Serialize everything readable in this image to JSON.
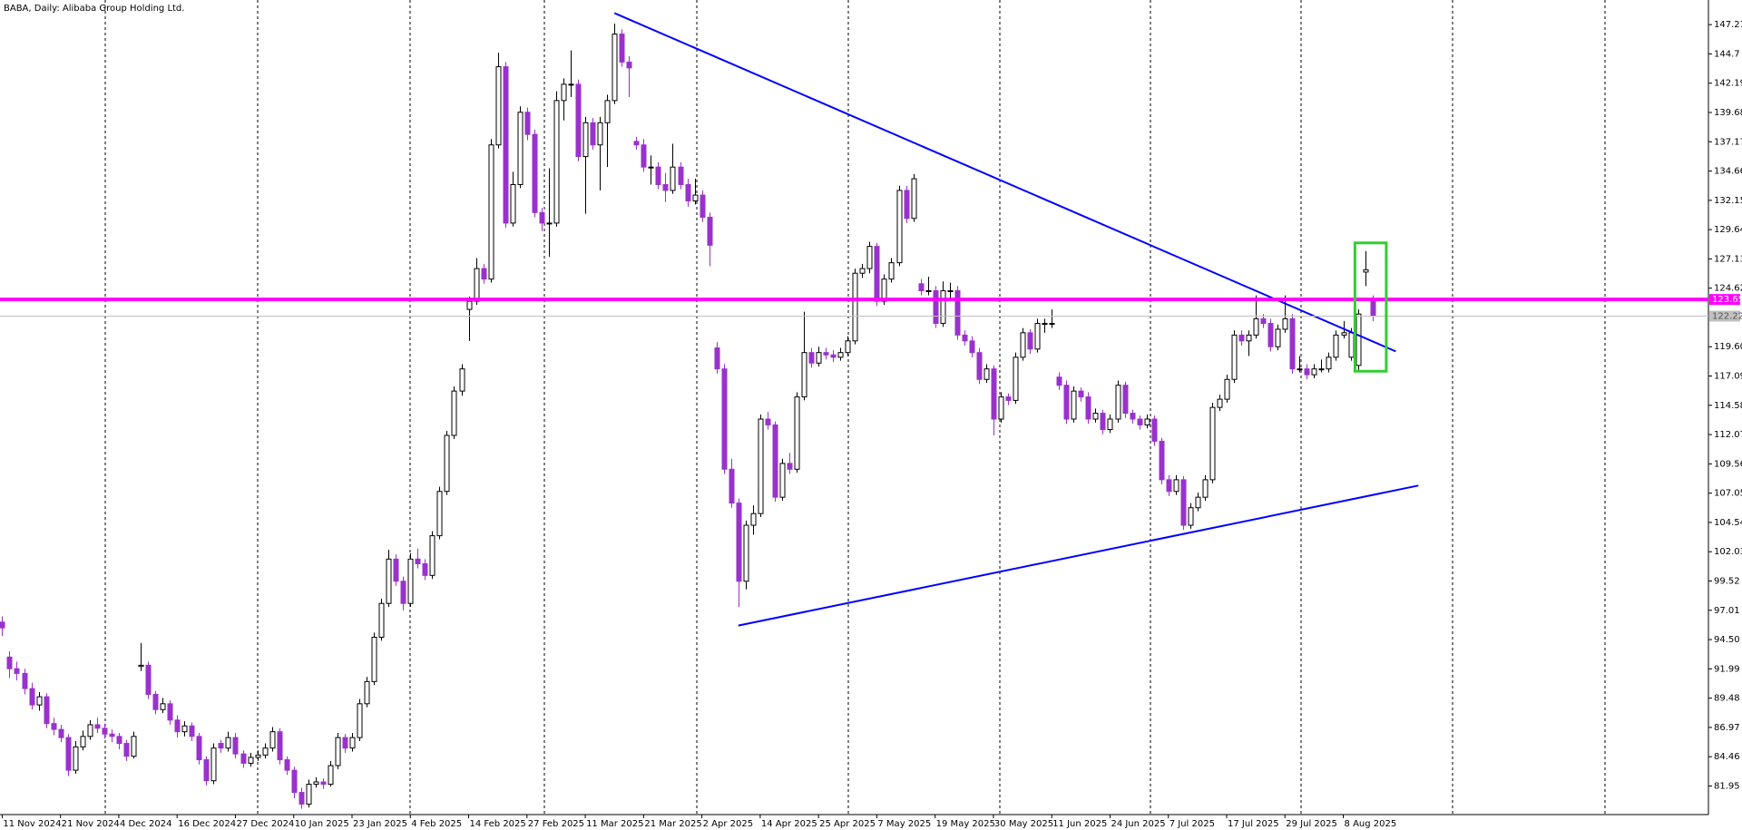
{
  "chart_data": {
    "type": "candlestick",
    "title": "BABA, Daily:  Alibaba Group Holding Ltd.",
    "up_color": "#ffffff",
    "down_color": "#9932cc",
    "outline_color": "#000000",
    "xlim": [
      -0.3,
      234.1
    ],
    "ylim": [
      79.5,
      149.32
    ],
    "xticks": [
      {
        "value": 0,
        "label": "11 Nov 2024"
      },
      {
        "value": 8,
        "label": "21 Nov 2024"
      },
      {
        "value": 16,
        "label": "4 Dec 2024"
      },
      {
        "value": 24,
        "label": "16 Dec 2024"
      },
      {
        "value": 32,
        "label": "27 Dec 2024"
      },
      {
        "value": 40,
        "label": "10 Jan 2025"
      },
      {
        "value": 48,
        "label": "23 Jan 2025"
      },
      {
        "value": 56,
        "label": "4 Feb 2025"
      },
      {
        "value": 64,
        "label": "14 Feb 2025"
      },
      {
        "value": 72,
        "label": "27 Feb 2025"
      },
      {
        "value": 80,
        "label": "11 Mar 2025"
      },
      {
        "value": 88,
        "label": "21 Mar 2025"
      },
      {
        "value": 96,
        "label": "2 Apr 2025"
      },
      {
        "value": 104,
        "label": "14 Apr 2025"
      },
      {
        "value": 112,
        "label": "25 Apr 2025"
      },
      {
        "value": 120,
        "label": "7 May 2025"
      },
      {
        "value": 128,
        "label": "19 May 2025"
      },
      {
        "value": 136,
        "label": "30 May 2025"
      },
      {
        "value": 144,
        "label": "11 Jun 2025"
      },
      {
        "value": 152,
        "label": "24 Jun 2025"
      },
      {
        "value": 160,
        "label": "7 Jul 2025"
      },
      {
        "value": 168,
        "label": "17 Jul 2025"
      },
      {
        "value": 176,
        "label": "29 Jul 2025"
      },
      {
        "value": 184,
        "label": "8 Aug 2025"
      }
    ],
    "yticks": [
      81.95,
      84.46,
      86.97,
      89.48,
      91.99,
      {
        "value": 94.5,
        "label": "94.50"
      },
      97.01,
      99.52,
      102.03,
      104.54,
      107.05,
      109.56,
      112.07,
      114.58,
      117.09,
      {
        "value": 119.6,
        "label": "119.60"
      },
      124.62,
      127.13,
      129.64,
      132.15,
      134.66,
      137.17,
      139.68,
      142.19,
      144.7,
      147.21
    ],
    "candles": [
      [
        96.0,
        96.5,
        94.8,
        95.5
      ],
      [
        93.0,
        93.5,
        91.2,
        92.0
      ],
      [
        92.0,
        92.6,
        91.0,
        91.6
      ],
      [
        91.6,
        92.0,
        89.8,
        90.3
      ],
      [
        90.3,
        90.8,
        88.5,
        88.9
      ],
      [
        88.9,
        90.0,
        88.4,
        89.6
      ],
      [
        89.6,
        89.9,
        86.9,
        87.3
      ],
      [
        87.3,
        87.8,
        86.3,
        86.8
      ],
      [
        86.8,
        87.2,
        85.7,
        86.1
      ],
      [
        86.1,
        86.4,
        82.8,
        83.3
      ],
      [
        83.3,
        85.8,
        83.0,
        85.3
      ],
      [
        85.3,
        86.7,
        85.0,
        86.2
      ],
      [
        86.2,
        87.6,
        85.9,
        87.2
      ],
      [
        87.2,
        87.8,
        86.5,
        86.9
      ],
      [
        86.9,
        87.3,
        86.0,
        86.4
      ],
      [
        86.4,
        86.8,
        85.7,
        86.2
      ],
      [
        86.2,
        86.5,
        85.1,
        85.6
      ],
      [
        85.6,
        85.9,
        84.1,
        84.5
      ],
      [
        84.5,
        86.6,
        84.3,
        86.2
      ],
      [
        92.2,
        94.2,
        91.8,
        92.3
      ],
      [
        92.3,
        92.6,
        89.4,
        89.8
      ],
      [
        89.8,
        90.1,
        88.1,
        88.5
      ],
      [
        88.5,
        89.5,
        88.2,
        89.0
      ],
      [
        89.0,
        89.3,
        87.2,
        87.6
      ],
      [
        87.6,
        88.0,
        86.1,
        86.6
      ],
      [
        86.6,
        87.5,
        86.2,
        87.1
      ],
      [
        87.1,
        87.4,
        85.8,
        86.2
      ],
      [
        86.2,
        86.5,
        83.8,
        84.2
      ],
      [
        84.2,
        84.5,
        82.0,
        82.4
      ],
      [
        82.4,
        85.6,
        82.1,
        85.2
      ],
      [
        85.6,
        85.9,
        84.8,
        85.2
      ],
      [
        85.2,
        86.6,
        84.9,
        86.1
      ],
      [
        86.1,
        86.5,
        84.3,
        84.7
      ],
      [
        84.7,
        85.0,
        83.5,
        83.9
      ],
      [
        83.9,
        84.8,
        83.6,
        84.4
      ],
      [
        84.4,
        85.0,
        84.1,
        84.6
      ],
      [
        84.6,
        85.6,
        84.3,
        85.2
      ],
      [
        85.2,
        87.0,
        84.9,
        86.6
      ],
      [
        86.6,
        86.9,
        83.8,
        84.2
      ],
      [
        84.2,
        84.5,
        82.9,
        83.3
      ],
      [
        83.3,
        83.6,
        80.9,
        81.4
      ],
      [
        81.4,
        81.8,
        80.0,
        80.4
      ],
      [
        80.4,
        82.5,
        80.1,
        82.1
      ],
      [
        82.1,
        82.7,
        81.8,
        82.3
      ],
      [
        82.3,
        82.6,
        81.7,
        82.1
      ],
      [
        82.1,
        84.1,
        81.9,
        83.7
      ],
      [
        83.7,
        86.5,
        83.4,
        86.1
      ],
      [
        86.1,
        86.4,
        84.8,
        85.2
      ],
      [
        85.2,
        86.5,
        84.9,
        86.1
      ],
      [
        86.1,
        89.4,
        85.8,
        89.0
      ],
      [
        89.0,
        91.3,
        88.7,
        90.9
      ],
      [
        90.9,
        95.1,
        90.6,
        94.7
      ],
      [
        94.7,
        98.0,
        94.4,
        97.6
      ],
      [
        97.6,
        102.2,
        97.3,
        101.4
      ],
      [
        101.4,
        101.8,
        99.1,
        99.5
      ],
      [
        99.5,
        99.9,
        97.0,
        97.6
      ],
      [
        97.6,
        101.9,
        97.3,
        101.4
      ],
      [
        101.4,
        102.3,
        100.6,
        101.0
      ],
      [
        101.0,
        101.4,
        99.6,
        100.0
      ],
      [
        100.0,
        103.8,
        99.7,
        103.4
      ],
      [
        103.4,
        107.6,
        103.1,
        107.2
      ],
      [
        107.2,
        112.4,
        106.9,
        112.0
      ],
      [
        112.0,
        116.2,
        111.7,
        115.8
      ],
      [
        115.8,
        118.1,
        115.4,
        117.7
      ],
      [
        122.8,
        123.9,
        120.1,
        123.5
      ],
      [
        123.5,
        127.2,
        123.2,
        126.3
      ],
      [
        126.3,
        126.7,
        125.0,
        125.4
      ],
      [
        125.4,
        137.4,
        125.1,
        136.9
      ],
      [
        136.9,
        144.8,
        136.6,
        143.6
      ],
      [
        143.6,
        144.0,
        129.8,
        130.2
      ],
      [
        130.2,
        134.6,
        129.9,
        133.5
      ],
      [
        133.5,
        140.2,
        133.2,
        139.7
      ],
      [
        139.7,
        140.1,
        137.3,
        137.8
      ],
      [
        137.8,
        138.2,
        130.7,
        131.1
      ],
      [
        131.1,
        131.5,
        129.5,
        130.2
      ],
      [
        130.2,
        134.9,
        127.3,
        130.2
      ],
      [
        130.2,
        141.5,
        129.9,
        140.7
      ],
      [
        140.7,
        142.6,
        139.0,
        142.1
      ],
      [
        142.1,
        145.0,
        141.0,
        142.1
      ],
      [
        142.1,
        142.5,
        135.5,
        135.9
      ],
      [
        135.9,
        139.3,
        131.0,
        138.8
      ],
      [
        138.8,
        139.2,
        136.5,
        136.9
      ],
      [
        136.9,
        139.3,
        133.0,
        138.8
      ],
      [
        138.8,
        141.2,
        135.0,
        140.7
      ],
      [
        140.7,
        147.3,
        140.4,
        146.4
      ],
      [
        146.4,
        146.8,
        143.6,
        144.0
      ],
      [
        144.0,
        144.5,
        141.0,
        143.5
      ],
      [
        137.2,
        137.6,
        136.5,
        136.9
      ],
      [
        136.9,
        137.4,
        134.6,
        135.0
      ],
      [
        135.0,
        136.0,
        133.5,
        135.0
      ],
      [
        135.0,
        135.4,
        133.1,
        133.5
      ],
      [
        133.5,
        134.5,
        132.0,
        133.0
      ],
      [
        133.0,
        137.0,
        132.7,
        135.0
      ],
      [
        135.0,
        135.4,
        133.1,
        133.5
      ],
      [
        133.5,
        134.0,
        131.6,
        132.1
      ],
      [
        132.1,
        134.0,
        131.8,
        132.6
      ],
      [
        132.6,
        133.0,
        130.3,
        130.7
      ],
      [
        130.7,
        131.1,
        126.5,
        128.3
      ],
      [
        119.5,
        120.0,
        117.3,
        117.7
      ],
      [
        117.7,
        118.1,
        108.7,
        109.1
      ],
      [
        109.1,
        110.0,
        105.8,
        106.2
      ],
      [
        106.2,
        106.6,
        97.3,
        99.5
      ],
      [
        99.5,
        104.7,
        98.8,
        104.3
      ],
      [
        104.3,
        106.0,
        103.5,
        105.3
      ],
      [
        105.3,
        113.8,
        105.0,
        113.4
      ],
      [
        113.4,
        114.0,
        112.5,
        112.9
      ],
      [
        112.9,
        113.2,
        106.3,
        106.7
      ],
      [
        106.7,
        110.0,
        106.4,
        109.6
      ],
      [
        109.6,
        110.5,
        108.7,
        109.1
      ],
      [
        109.1,
        115.7,
        108.8,
        115.3
      ],
      [
        115.3,
        122.6,
        115.0,
        119.1
      ],
      [
        119.1,
        119.5,
        117.8,
        118.2
      ],
      [
        118.2,
        119.6,
        117.9,
        119.1
      ],
      [
        119.1,
        119.5,
        118.5,
        118.9
      ],
      [
        118.9,
        119.3,
        118.3,
        118.7
      ],
      [
        118.7,
        119.5,
        118.4,
        119.1
      ],
      [
        119.1,
        120.5,
        118.8,
        120.1
      ],
      [
        120.1,
        126.3,
        119.8,
        125.9
      ],
      [
        125.9,
        126.7,
        125.5,
        126.3
      ],
      [
        126.3,
        128.6,
        125.9,
        128.2
      ],
      [
        128.2,
        128.5,
        123.1,
        123.5
      ],
      [
        123.5,
        125.8,
        123.2,
        125.4
      ],
      [
        125.4,
        127.2,
        125.1,
        126.8
      ],
      [
        126.8,
        133.4,
        126.5,
        133.0
      ],
      [
        133.0,
        133.4,
        130.2,
        130.6
      ],
      [
        130.6,
        134.4,
        130.3,
        134.0
      ],
      [
        125.0,
        125.4,
        124.0,
        124.4
      ],
      [
        124.4,
        125.6,
        124.0,
        124.4
      ],
      [
        124.4,
        124.8,
        121.2,
        121.6
      ],
      [
        121.6,
        125.2,
        121.3,
        124.4
      ],
      [
        124.4,
        125.1,
        123.6,
        124.4
      ],
      [
        124.4,
        124.8,
        120.2,
        120.6
      ],
      [
        120.6,
        121.0,
        119.7,
        120.1
      ],
      [
        120.1,
        120.5,
        118.7,
        119.1
      ],
      [
        119.1,
        119.5,
        116.4,
        116.8
      ],
      [
        116.8,
        118.1,
        116.5,
        117.7
      ],
      [
        117.7,
        118.0,
        112.0,
        113.4
      ],
      [
        113.4,
        115.7,
        113.1,
        115.3
      ],
      [
        115.3,
        115.6,
        114.6,
        115.0
      ],
      [
        115.0,
        119.1,
        114.7,
        118.7
      ],
      [
        118.7,
        121.2,
        118.4,
        120.8
      ],
      [
        120.8,
        121.1,
        119.0,
        119.4
      ],
      [
        119.4,
        122.0,
        119.1,
        121.6
      ],
      [
        121.6,
        122.0,
        120.8,
        121.6
      ],
      [
        121.6,
        122.8,
        121.2,
        121.6
      ],
      [
        117.0,
        117.4,
        115.9,
        116.3
      ],
      [
        116.3,
        116.7,
        113.0,
        113.4
      ],
      [
        113.4,
        116.2,
        113.1,
        115.8
      ],
      [
        115.8,
        116.1,
        114.9,
        115.3
      ],
      [
        115.3,
        115.7,
        113.0,
        113.4
      ],
      [
        113.4,
        114.3,
        113.1,
        113.9
      ],
      [
        113.9,
        114.2,
        112.1,
        112.5
      ],
      [
        112.5,
        113.8,
        112.2,
        113.4
      ],
      [
        113.4,
        116.7,
        113.1,
        116.3
      ],
      [
        116.3,
        116.6,
        113.5,
        113.9
      ],
      [
        113.9,
        114.2,
        113.0,
        113.4
      ],
      [
        113.4,
        113.7,
        112.5,
        112.9
      ],
      [
        112.9,
        113.8,
        112.6,
        113.4
      ],
      [
        113.4,
        113.7,
        111.1,
        111.5
      ],
      [
        111.5,
        111.8,
        107.8,
        108.2
      ],
      [
        108.2,
        108.6,
        106.8,
        107.2
      ],
      [
        107.2,
        108.6,
        106.9,
        108.2
      ],
      [
        108.2,
        108.5,
        103.9,
        104.3
      ],
      [
        104.3,
        106.2,
        104.0,
        105.8
      ],
      [
        105.8,
        107.1,
        105.5,
        106.7
      ],
      [
        106.7,
        108.6,
        106.4,
        108.2
      ],
      [
        108.2,
        114.8,
        107.9,
        114.4
      ],
      [
        114.4,
        115.5,
        114.1,
        115.1
      ],
      [
        115.1,
        117.2,
        114.8,
        116.8
      ],
      [
        116.8,
        121.0,
        116.5,
        120.6
      ],
      [
        120.6,
        121.0,
        119.7,
        120.1
      ],
      [
        120.1,
        121.0,
        118.8,
        120.6
      ],
      [
        120.6,
        124.0,
        120.3,
        122.0
      ],
      [
        122.0,
        122.4,
        121.2,
        121.6
      ],
      [
        121.6,
        122.0,
        119.2,
        119.6
      ],
      [
        119.6,
        121.5,
        119.3,
        121.1
      ],
      [
        121.1,
        124.0,
        120.8,
        122.0
      ],
      [
        122.0,
        122.4,
        117.3,
        117.7
      ],
      [
        117.7,
        118.8,
        117.4,
        117.7
      ],
      [
        117.7,
        118.1,
        116.8,
        117.2
      ],
      [
        117.2,
        118.1,
        116.9,
        117.7
      ],
      [
        117.7,
        118.5,
        117.4,
        117.7
      ],
      [
        117.7,
        119.1,
        117.4,
        118.7
      ],
      [
        118.7,
        121.0,
        118.4,
        120.6
      ],
      [
        120.6,
        121.8,
        120.3,
        120.8
      ],
      [
        118.7,
        121.2,
        118.4,
        120.8
      ],
      [
        118.0,
        122.8,
        117.5,
        122.4
      ],
      [
        126.0,
        127.8,
        124.8,
        126.2
      ],
      [
        123.6,
        124.0,
        121.8,
        122.3
      ]
    ],
    "trendlines": [
      {
        "points": [
          [
            84,
            148.2
          ],
          [
            191.2,
            119.2
          ]
        ],
        "color": "#0000ff"
      },
      {
        "points": [
          [
            101,
            95.7
          ],
          [
            194.3,
            107.7
          ]
        ],
        "color": "#0000ff"
      }
    ],
    "price_lines": [
      {
        "value": 123.65,
        "color": "#ff00ff"
      },
      {
        "value": 122.22,
        "color": "#c0c0c0"
      }
    ],
    "highlight_box": {
      "x": [
        185.6,
        189.9
      ],
      "y": [
        117.5,
        128.5
      ],
      "color": "#33cc33"
    }
  }
}
